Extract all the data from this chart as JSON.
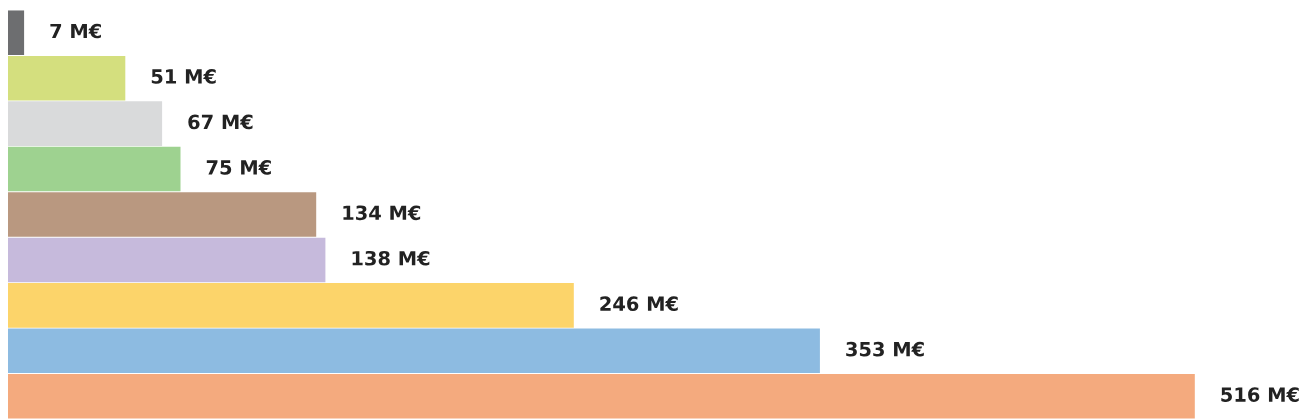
{
  "chart_data": {
    "type": "bar",
    "orientation": "horizontal",
    "categories": [
      null,
      null,
      null,
      null,
      null,
      null,
      null,
      null,
      null
    ],
    "values": [
      7,
      51,
      67,
      75,
      134,
      138,
      246,
      353,
      516
    ],
    "colors": [
      "#6d6e70",
      "#d4df7e",
      "#d9dadb",
      "#9ed290",
      "#b99880",
      "#c6badc",
      "#fcd46a",
      "#8dbbe1",
      "#f4aa7e"
    ],
    "value_labels": [
      "7 M€",
      "51 M€",
      "67 M€",
      "75 M€",
      "134 M€",
      "138 M€",
      "246 M€",
      "353 M€",
      "516 M€"
    ],
    "grid": false,
    "legend": false
  }
}
